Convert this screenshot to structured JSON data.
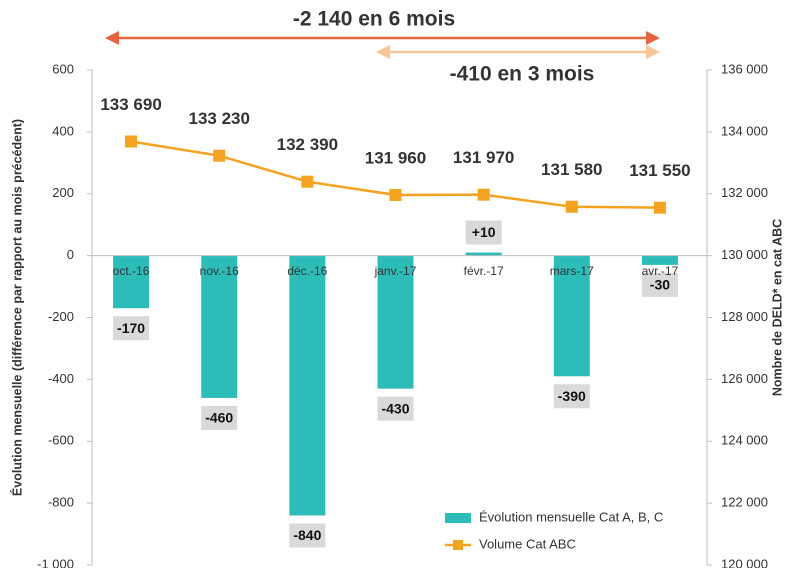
{
  "chart_data": {
    "type": "bar",
    "annotations": [
      {
        "text": "-2 140 en 6 mois",
        "color": "#e8643c"
      },
      {
        "text": "-410 en 3 mois",
        "color": "#f9c596"
      }
    ],
    "ylabel": "Évolution mensuelle (différence par rapport au mois précédent)",
    "y2label": "Nombre de DELD* en cat ABC",
    "categories": [
      "oct.-16",
      "nov.-16",
      "déc.-16",
      "janv.-17",
      "févr.-17",
      "mars-17",
      "avr.-17"
    ],
    "series": [
      {
        "name": "Évolution mensuelle Cat A, B, C",
        "type": "bar",
        "color": "#2dbdb8",
        "values": [
          -170,
          -460,
          -840,
          -430,
          10,
          -390,
          -30
        ],
        "value_labels": [
          "-170",
          "-460",
          "-840",
          "-430",
          "+10",
          "-390",
          "-30"
        ]
      },
      {
        "name": "Volume Cat ABC",
        "type": "line",
        "axis": "y2",
        "color": "#f5a21e",
        "values": [
          133690,
          133230,
          132390,
          131960,
          131970,
          131580,
          131550
        ],
        "value_labels": [
          "133 690",
          "133 230",
          "132 390",
          "131 960",
          "131 970",
          "131 580",
          "131 550"
        ]
      }
    ],
    "ylim": [
      -1000,
      600
    ],
    "yticks": [
      {
        "value": -1000,
        "label": "-1 000"
      },
      -800,
      -600,
      -400,
      -200,
      0,
      200,
      400,
      600
    ],
    "y2lim": [
      120000,
      136000
    ],
    "y2ticks": [
      {
        "value": 120000,
        "label": "120 000"
      },
      {
        "value": 122000,
        "label": "122 000"
      },
      {
        "value": 124000,
        "label": "124 000"
      },
      {
        "value": 126000,
        "label": "126 000"
      },
      {
        "value": 128000,
        "label": "128 000"
      },
      {
        "value": 130000,
        "label": "130 000"
      },
      {
        "value": 132000,
        "label": "132 000"
      },
      {
        "value": 134000,
        "label": "134 000"
      },
      {
        "value": 136000,
        "label": "136 000"
      }
    ],
    "legend": "bottom-right",
    "grid": false
  }
}
